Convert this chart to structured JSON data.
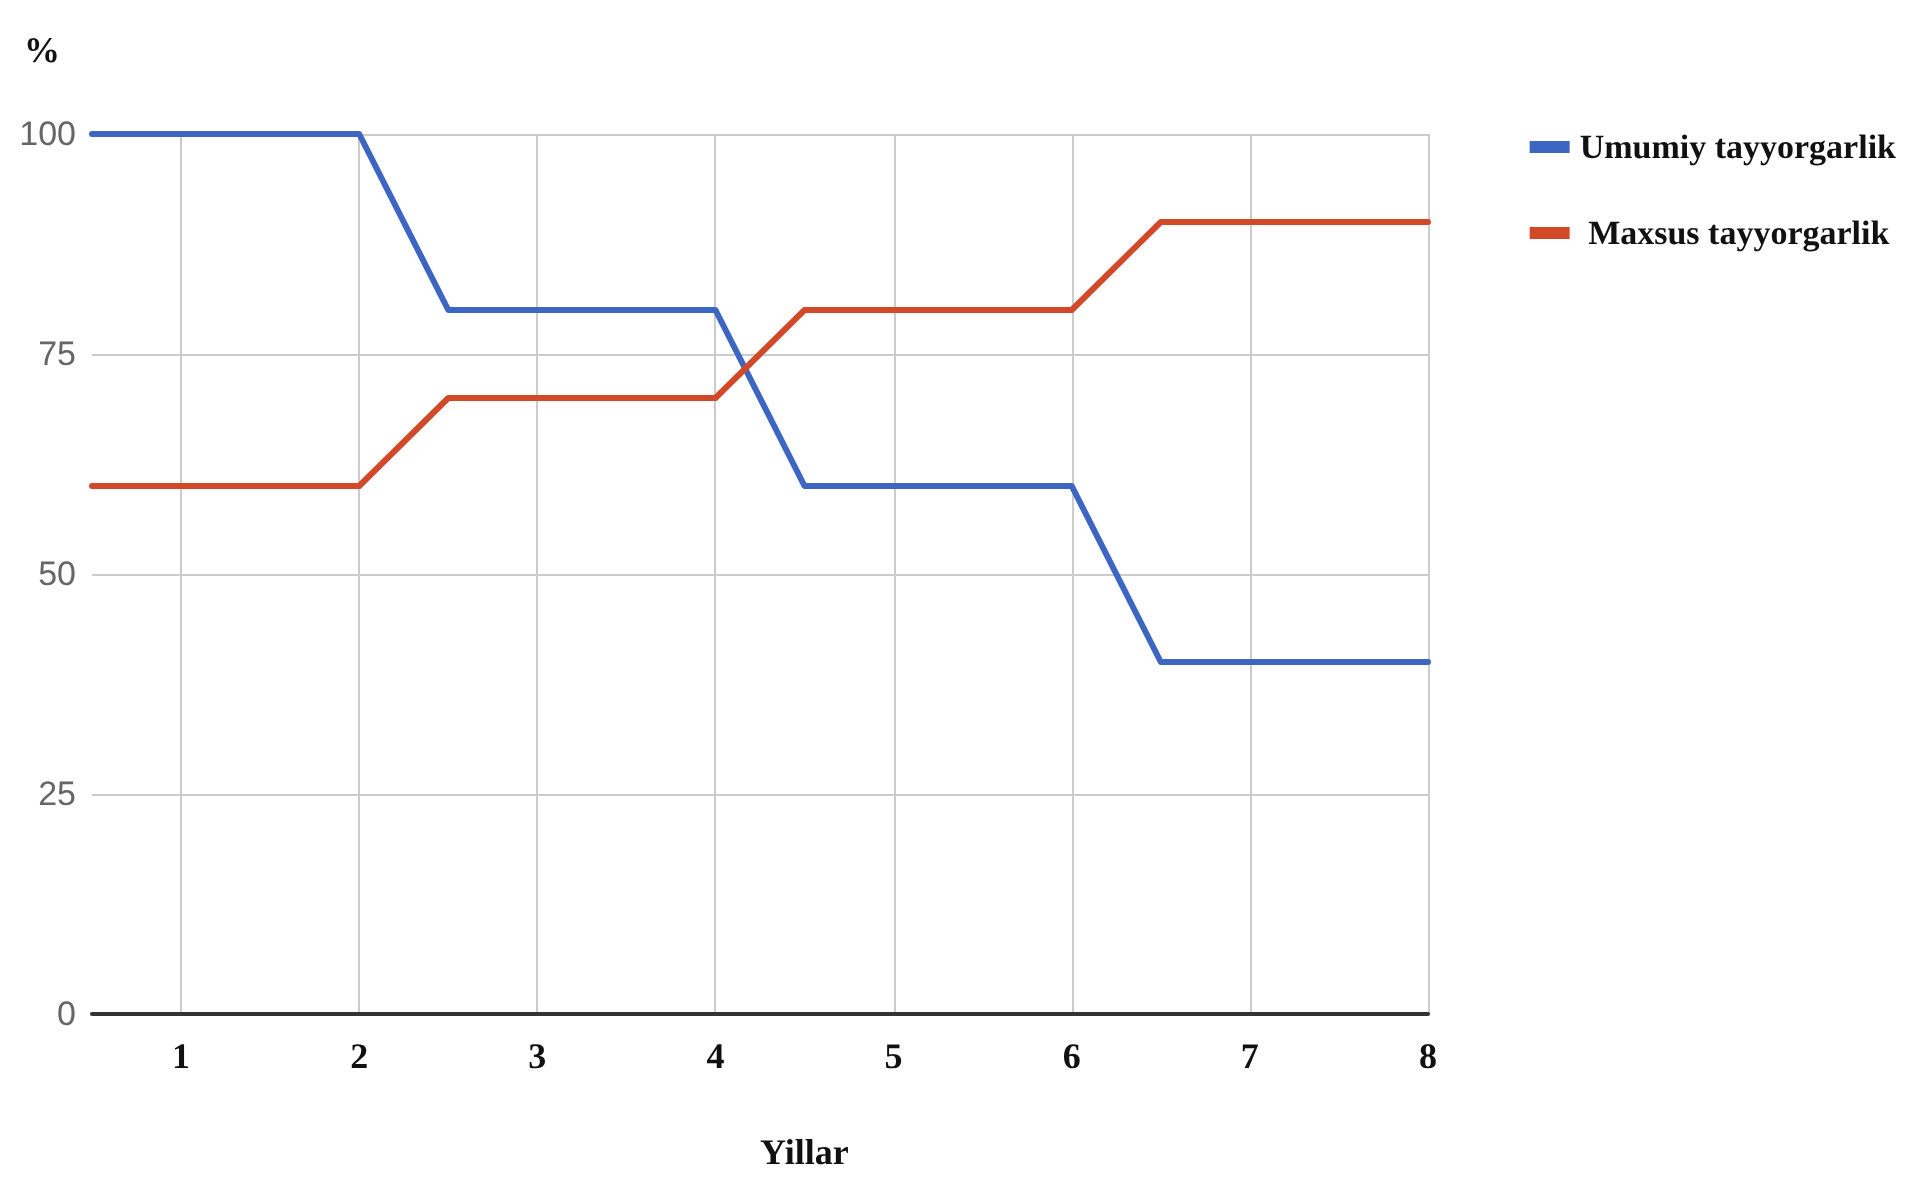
{
  "chart_data": {
    "type": "line",
    "xlabel": "Yillar",
    "ylabel": "%",
    "series": [
      {
        "name": "Umumiy tayyorgarlik",
        "color": "#3d66c2",
        "x": [
          0.5,
          2,
          2.5,
          4,
          4.5,
          6,
          6.5,
          8
        ],
        "values": [
          100,
          100,
          80,
          80,
          60,
          60,
          40,
          40
        ]
      },
      {
        "name": " Maxsus tayyorgarlik",
        "color": "#d2492a",
        "x": [
          0.5,
          2,
          2.5,
          4,
          4.5,
          6,
          6.5,
          8
        ],
        "values": [
          60,
          60,
          70,
          70,
          80,
          80,
          90,
          90
        ]
      }
    ],
    "xlim": [
      0.5,
      8
    ],
    "xticks": [
      1,
      2,
      3,
      4,
      5,
      6,
      7,
      8
    ],
    "ylim": [
      0,
      100
    ],
    "yticks": [
      0,
      25,
      50,
      75,
      100
    ],
    "grid": true,
    "legend": "top right",
    "marker": "none",
    "line_style": "solid"
  }
}
